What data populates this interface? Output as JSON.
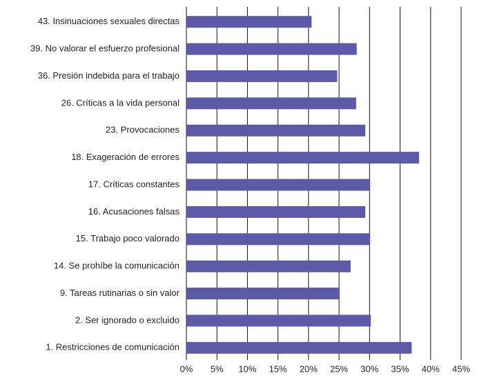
{
  "chart_data": {
    "type": "bar",
    "orientation": "horizontal",
    "categories": [
      "43. Insinuaciones sexuales directas",
      "39. No valorar el esfuerzo profesional",
      "36. Presión indebida para el trabajo",
      "26. Críticas a la vida personal",
      "23. Provocaciones",
      "18. Exageración de errores",
      "17. Críticas constantes",
      "16. Acusaciones falsas",
      "15. Trabajo poco valorado",
      "14.  Se prohíbe la comunicación",
      "9. Tareas rutinarias o sin valor",
      "2. Ser ignorado o excluido",
      "1. Restricciones de comunicación"
    ],
    "values": [
      20.5,
      27.9,
      24.7,
      27.8,
      29.3,
      38.1,
      30.1,
      29.3,
      30.1,
      26.9,
      25.1,
      30.2,
      36.9
    ],
    "color": "#5c5aa6",
    "xlim": [
      0,
      45
    ],
    "xticks": [
      {
        "value": 0,
        "label": "0%"
      },
      {
        "value": 5,
        "label": "5%"
      },
      {
        "value": 10,
        "label": "10%"
      },
      {
        "value": 15,
        "label": "15%"
      },
      {
        "value": 20,
        "label": "20%"
      },
      {
        "value": 25,
        "label": "25%"
      },
      {
        "value": 30,
        "label": "30%"
      },
      {
        "value": 35,
        "label": "35%"
      },
      {
        "value": 40,
        "label": "40%"
      },
      {
        "value": 45,
        "label": "45%"
      }
    ],
    "grid": true
  }
}
